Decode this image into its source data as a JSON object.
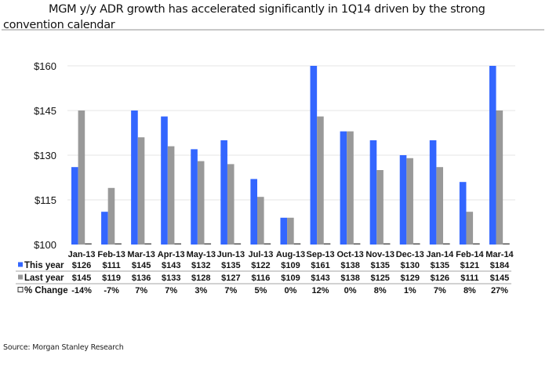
{
  "title": "MGM y/y ADR growth has accelerated significantly in 1Q14 driven by the strong convention calendar",
  "source": "Source: Morgan Stanley Research",
  "colors": {
    "this_year": "#3366ff",
    "last_year": "#999999",
    "pct_change": "#555555",
    "grid": "#e6e6e6",
    "table_rule": "#888888"
  },
  "chart_data": {
    "type": "bar",
    "title": "MGM y/y ADR growth has accelerated significantly in 1Q14 driven by the strong convention calendar",
    "xlabel": "",
    "ylabel": "",
    "ylim": [
      100,
      160
    ],
    "yticks": [
      100,
      115,
      130,
      145,
      160
    ],
    "ytick_labels": [
      "$100",
      "$115",
      "$130",
      "$145",
      "$160"
    ],
    "grid": true,
    "legend_placement": "bottom (data table)",
    "categories": [
      "Jan-13",
      "Feb-13",
      "Mar-13",
      "Apr-13",
      "May-13",
      "Jun-13",
      "Jul-13",
      "Aug-13",
      "Sep-13",
      "Oct-13",
      "Nov-13",
      "Dec-13",
      "Jan-14",
      "Feb-14",
      "Mar-14"
    ],
    "series": [
      {
        "name": "This year",
        "legend_marker": "filled-square",
        "values": [
          126,
          111,
          145,
          143,
          132,
          135,
          122,
          109,
          161,
          138,
          135,
          130,
          135,
          121,
          184
        ],
        "labels": [
          "$126",
          "$111",
          "$145",
          "$143",
          "$132",
          "$135",
          "$122",
          "$109",
          "$161",
          "$138",
          "$135",
          "$130",
          "$135",
          "$121",
          "$184"
        ]
      },
      {
        "name": "Last year",
        "legend_marker": "filled-square",
        "values": [
          145,
          119,
          136,
          133,
          128,
          127,
          116,
          109,
          143,
          138,
          125,
          129,
          126,
          111,
          145
        ],
        "labels": [
          "$145",
          "$119",
          "$136",
          "$133",
          "$128",
          "$127",
          "$116",
          "$109",
          "$143",
          "$138",
          "$125",
          "$129",
          "$126",
          "$111",
          "$145"
        ]
      },
      {
        "name": "% Change",
        "legend_marker": "hollow-square",
        "values": [
          -14,
          -7,
          7,
          7,
          3,
          7,
          5,
          0,
          12,
          0,
          8,
          1,
          7,
          8,
          27
        ],
        "labels": [
          "-14%",
          "-7%",
          "7%",
          "7%",
          "3%",
          "7%",
          "5%",
          "0%",
          "12%",
          "0%",
          "8%",
          "1%",
          "7%",
          "8%",
          "27%"
        ]
      }
    ]
  }
}
